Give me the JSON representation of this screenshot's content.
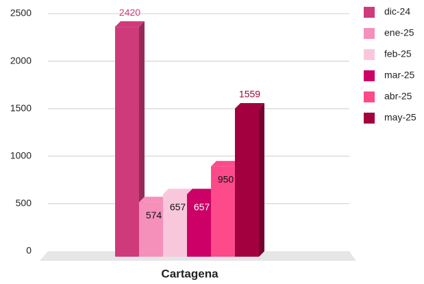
{
  "chart_data": {
    "type": "bar3d",
    "categories": [
      "Cartagena"
    ],
    "series": [
      {
        "name": "dic-24",
        "color": "#cf3b7a",
        "values": [
          2420
        ]
      },
      {
        "name": "ene-25",
        "color": "#f590bb",
        "values": [
          574
        ]
      },
      {
        "name": "feb-25",
        "color": "#f9c7dc",
        "values": [
          657
        ]
      },
      {
        "name": "mar-25",
        "color": "#cc0066",
        "values": [
          657
        ]
      },
      {
        "name": "abr-25",
        "color": "#fc4a8a",
        "values": [
          950
        ]
      },
      {
        "name": "may-25",
        "color": "#a3003f",
        "values": [
          1559
        ]
      }
    ],
    "ylim": [
      0,
      2500
    ],
    "yticks": [
      0,
      500,
      1000,
      1500,
      2000,
      2500
    ],
    "grid": true,
    "legend": "right"
  }
}
